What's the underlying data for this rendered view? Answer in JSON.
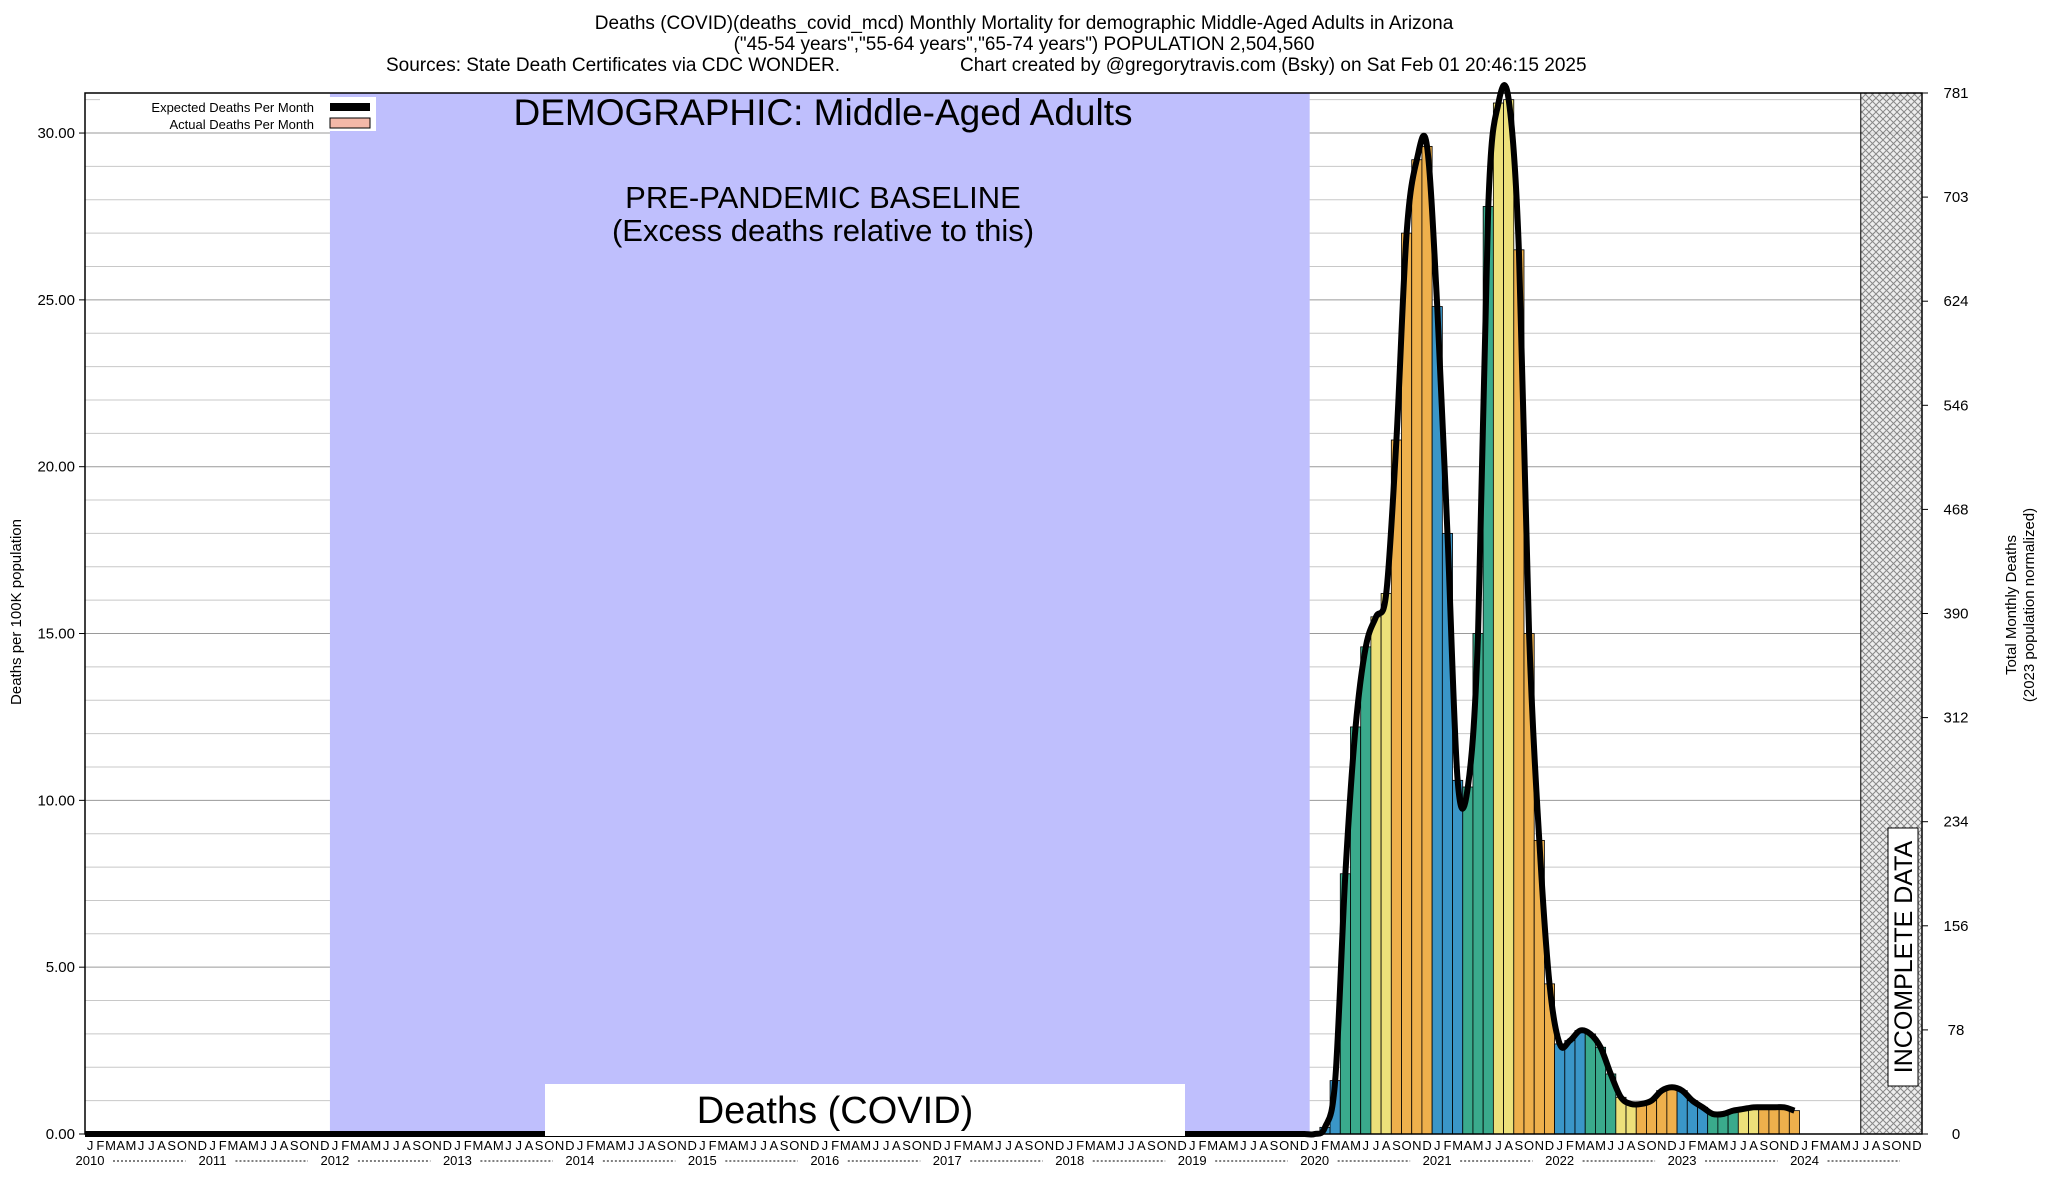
{
  "header": {
    "line1": "Deaths (COVID)(deaths_covid_mcd) Monthly Mortality for demographic Middle-Aged Adults in Arizona",
    "line2": "(\"45-54 years\",\"55-64 years\",\"65-74 years\") POPULATION 2,504,560",
    "line3_left": "Sources: State Death Certificates via CDC WONDER.",
    "line3_right": "Chart created by @gregorytravis.com (Bsky) on Sat Feb 01 20:46:15 2025"
  },
  "colors": {
    "baseline_band": "#bfbffd",
    "expected_line": "#000000",
    "actual_swatch": "#f4b8a8",
    "bar_palette": [
      "#3a96c8",
      "#3aaa8c",
      "#5cc080",
      "#ede07a",
      "#f2d868",
      "#eeb04c"
    ],
    "incomplete_hatch": "#7a7a7a"
  },
  "chart_data": {
    "type": "bar",
    "title": "Deaths (COVID)",
    "demographic_label": "DEMOGRAPHIC: Middle-Aged Adults",
    "baseline_label_1": "PRE-PANDEMIC BASELINE",
    "baseline_label_2": "(Excess deaths relative to this)",
    "incomplete_label": "INCOMPLETE DATA",
    "ylabel": "Deaths per 100K population",
    "y2label_1": "Total Monthly Deaths",
    "y2label_2": "(2023 population normalized)",
    "ylim": [
      0,
      31.2
    ],
    "yticks": [
      "0.00",
      "5.00",
      "10.00",
      "15.00",
      "20.00",
      "25.00",
      "30.00"
    ],
    "y2ticks": [
      "0",
      "78",
      "156",
      "234",
      "312",
      "390",
      "468",
      "546",
      "624",
      "703",
      "781"
    ],
    "x_start": "2010-01",
    "x_end": "2024-12",
    "baseline_period": [
      "2012-01",
      "2019-12"
    ],
    "incomplete_period": [
      "2024-07",
      "2024-12"
    ],
    "month_letters": [
      "J",
      "F",
      "M",
      "A",
      "M",
      "J",
      "J",
      "A",
      "S",
      "O",
      "N",
      "D"
    ],
    "years": [
      "2010",
      "2011",
      "2012",
      "2013",
      "2014",
      "2015",
      "2016",
      "2017",
      "2018",
      "2019",
      "2020",
      "2021",
      "2022",
      "2023",
      "2024"
    ],
    "legend": [
      {
        "label": "Expected Deaths Per Month",
        "swatch": "line"
      },
      {
        "label": "Actual Deaths Per Month",
        "swatch": "box"
      }
    ],
    "series": [
      {
        "name": "Actual Deaths Per Month",
        "start": "2020-01",
        "values": [
          0,
          0.2,
          1.6,
          7.8,
          12.2,
          14.6,
          15.5,
          16.2,
          20.8,
          27.0,
          29.2,
          29.6,
          24.8,
          18.0,
          10.6,
          10.4,
          15.0,
          27.8,
          30.9,
          31.0,
          26.5,
          15.0,
          8.8,
          4.5,
          2.7,
          2.8,
          3.1,
          3.0,
          2.6,
          1.8,
          1.1,
          0.9,
          0.9,
          1.0,
          1.3,
          1.4,
          1.3,
          1.0,
          0.8,
          0.6,
          0.6,
          0.7,
          0.75,
          0.8,
          0.8,
          0.8,
          0.8,
          0.7
        ]
      },
      {
        "name": "Expected Deaths Per Month",
        "start": "2010-01",
        "baseline_value": 0.0
      }
    ]
  }
}
